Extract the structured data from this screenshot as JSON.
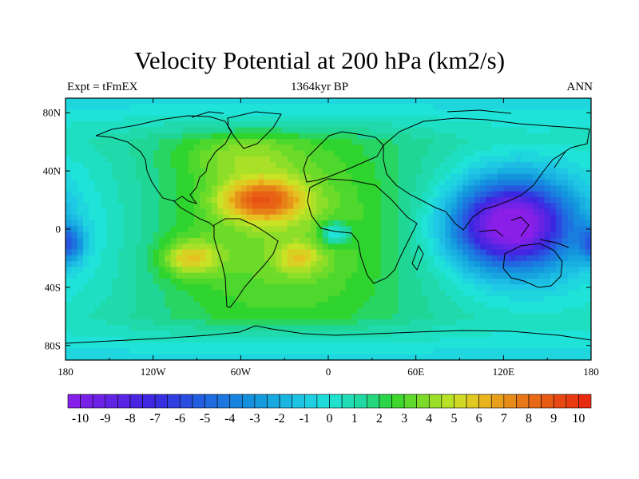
{
  "title": "Velocity Potential at 200 hPa (km2/s)",
  "subtitle_left": "Expt = tFmEX",
  "subtitle_center": "1364kyr BP",
  "subtitle_right": "ANN",
  "colors": {
    "low": "#8a1fe8",
    "neutral": "#1fe3d8",
    "mid": "#2fd42f",
    "high": "#e8220f",
    "coast": "#000000"
  },
  "chart_data": {
    "type": "heatmap",
    "title": "Velocity Potential at 200 hPa (km2/s)",
    "variable": "velocity potential",
    "units": "km2/s",
    "level": "200 hPa",
    "xlim": [
      -180,
      180
    ],
    "ylim": [
      -90,
      90
    ],
    "x_ticks": [
      {
        "value": -180,
        "label": "180"
      },
      {
        "value": -120,
        "label": "120W"
      },
      {
        "value": -60,
        "label": "60W"
      },
      {
        "value": 0,
        "label": "0"
      },
      {
        "value": 60,
        "label": "60E"
      },
      {
        "value": 120,
        "label": "120E"
      },
      {
        "value": 180,
        "label": "180"
      }
    ],
    "y_ticks": [
      {
        "value": 80,
        "label": "80N"
      },
      {
        "value": 40,
        "label": "40N"
      },
      {
        "value": 0,
        "label": "0"
      },
      {
        "value": -40,
        "label": "40S"
      },
      {
        "value": -80,
        "label": "80S"
      }
    ],
    "colorbar": {
      "min": -10.5,
      "max": 10.5,
      "step": 0.5,
      "labels": [
        "-10",
        "-9",
        "-8",
        "-7",
        "-6",
        "-5",
        "-4",
        "-3",
        "-2",
        "-1",
        "0",
        "1",
        "2",
        "3",
        "4",
        "5",
        "6",
        "7",
        "8",
        "9",
        "10"
      ],
      "label_values": [
        -10,
        -9,
        -8,
        -7,
        -6,
        -5,
        -4,
        -3,
        -2,
        -1,
        0,
        1,
        2,
        3,
        4,
        5,
        6,
        7,
        8,
        9,
        10
      ]
    },
    "field_features": [
      {
        "name": "west-pacific-minimum",
        "lon": 125,
        "lat": 5,
        "value": -10
      },
      {
        "name": "north-atlantic-maximum",
        "lon": -45,
        "lat": 20,
        "value": 8
      },
      {
        "name": "south-pacific-maximum",
        "lon": -95,
        "lat": -20,
        "value": 6
      },
      {
        "name": "south-atlantic-maximum",
        "lon": -20,
        "lat": -20,
        "value": 5
      },
      {
        "name": "gulf-of-guinea-minimum",
        "lon": 5,
        "lat": -3,
        "value": -1
      },
      {
        "name": "east-pacific-minimum",
        "lon": -180,
        "lat": -10,
        "value": -5
      }
    ]
  }
}
